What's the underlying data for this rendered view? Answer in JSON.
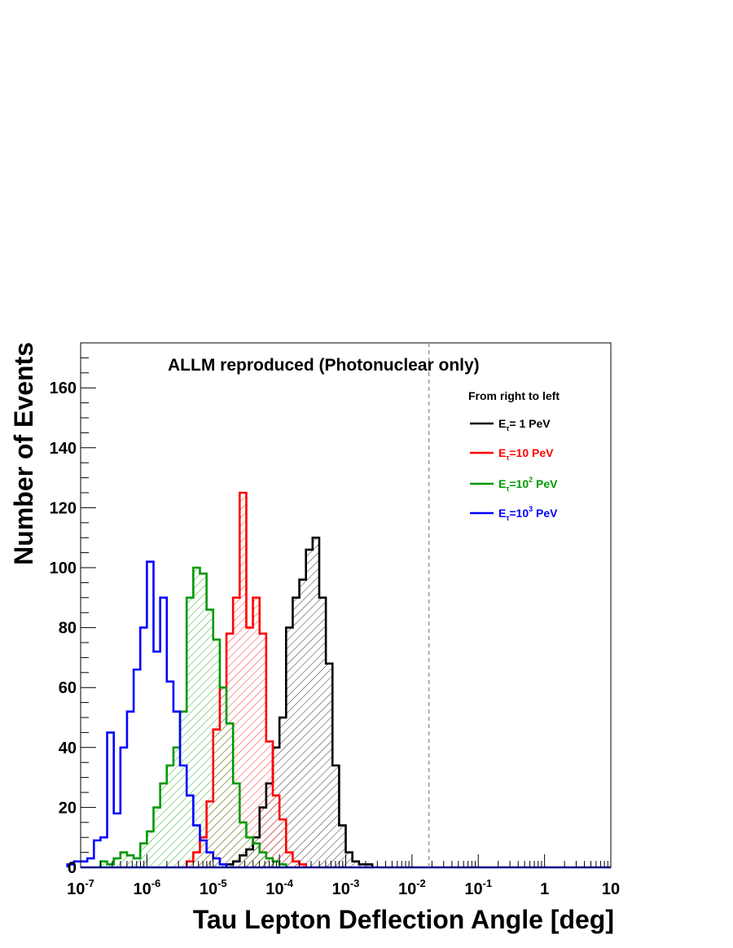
{
  "chart_data": {
    "type": "histogram",
    "title": "ALLM reproduced (Photonuclear only)",
    "xlabel": "Tau Lepton Deflection Angle [deg]",
    "ylabel": "Number of Events",
    "xscale": "log",
    "xlim": [
      1e-07,
      10
    ],
    "ylim": [
      0,
      175
    ],
    "x_tick_labels": [
      {
        "base": "10",
        "exp": "-7",
        "value": 1e-07
      },
      {
        "base": "10",
        "exp": "-6",
        "value": 1e-06
      },
      {
        "base": "10",
        "exp": "-5",
        "value": 1e-05
      },
      {
        "base": "10",
        "exp": "-4",
        "value": 0.0001
      },
      {
        "base": "10",
        "exp": "-3",
        "value": 0.001
      },
      {
        "base": "10",
        "exp": "-2",
        "value": 0.01
      },
      {
        "base": "10",
        "exp": "-1",
        "value": 0.1
      },
      {
        "base": "1",
        "exp": "",
        "value": 1
      },
      {
        "base": "10",
        "exp": "",
        "value": 10
      }
    ],
    "y_ticks": [
      0,
      20,
      40,
      60,
      80,
      100,
      120,
      140,
      160
    ],
    "vline": 0.018,
    "bins_per_decade": 10,
    "legend": {
      "placement": "top-right",
      "header": "From right to left",
      "entries": [
        {
          "pre": "E",
          "sub": "τ",
          "mid": "= 1 PeV",
          "sup": "",
          "post": "",
          "color": "#000000"
        },
        {
          "pre": "E",
          "sub": "τ",
          "mid": "=10 PeV",
          "sup": "",
          "post": "",
          "color": "#ff0000"
        },
        {
          "pre": "E",
          "sub": "τ",
          "mid": "=10",
          "sup": "2",
          "post": " PeV",
          "color": "#009900"
        },
        {
          "pre": "E",
          "sub": "τ",
          "mid": "=10",
          "sup": "3",
          "post": " PeV",
          "color": "#0000ff"
        }
      ]
    },
    "series": [
      {
        "color": "#000000",
        "hatch": true,
        "start": -4.8,
        "values": [
          1,
          2,
          4,
          6,
          10,
          20,
          28,
          40,
          50,
          80,
          90,
          96,
          106,
          110,
          90,
          68,
          34,
          14,
          5,
          2,
          1,
          1
        ]
      },
      {
        "color": "#ff0000",
        "hatch": true,
        "start": -5.4,
        "values": [
          2,
          5,
          10,
          22,
          46,
          60,
          78,
          90,
          125,
          80,
          90,
          78,
          42,
          24,
          16,
          5,
          2,
          1
        ]
      },
      {
        "color": "#009900",
        "hatch": true,
        "start": -6.7,
        "values": [
          2,
          1,
          3,
          5,
          4,
          3,
          8,
          12,
          20,
          28,
          34,
          40,
          52,
          90,
          100,
          98,
          86,
          76,
          60,
          48,
          28,
          15,
          10,
          8,
          5,
          3,
          2,
          1
        ]
      },
      {
        "color": "#0000ff",
        "hatch": false,
        "start": -7.2,
        "values": [
          1,
          2,
          2,
          3,
          9,
          10,
          45,
          18,
          40,
          52,
          66,
          80,
          102,
          72,
          90,
          62,
          52,
          34,
          24,
          14,
          9,
          5,
          3,
          1
        ]
      }
    ]
  }
}
